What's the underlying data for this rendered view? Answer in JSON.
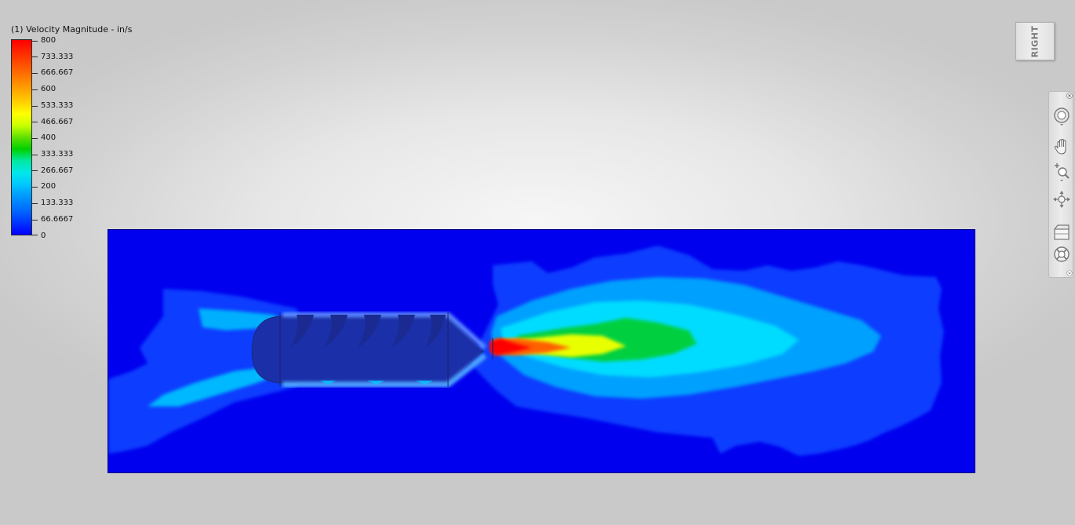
{
  "legend": {
    "title": "(1) Velocity Magnitude - in/s",
    "labels": [
      "800",
      "733.333",
      "666.667",
      "600",
      "533.333",
      "466.667",
      "400",
      "333.333",
      "266.667",
      "200",
      "133.333",
      "66.6667",
      "0"
    ],
    "colors_top_to_bottom": [
      "#ff0000",
      "#ff6600",
      "#ffa000",
      "#ffff00",
      "#00d000",
      "#00e8e8",
      "#009aff",
      "#0033ff",
      "#0000ff"
    ]
  },
  "viewcube": {
    "face_label": "RIGHT"
  },
  "navbar": {
    "tools": [
      {
        "icon": "steering-wheel-icon"
      },
      {
        "icon": "pan-hand-icon"
      },
      {
        "icon": "zoom-icon"
      },
      {
        "icon": "orbit-icon"
      },
      {
        "icon": "view-box-icon"
      },
      {
        "icon": "look-icon"
      }
    ]
  },
  "field": {
    "background_color": "#0000ee",
    "peak_color": "#ff0000"
  }
}
